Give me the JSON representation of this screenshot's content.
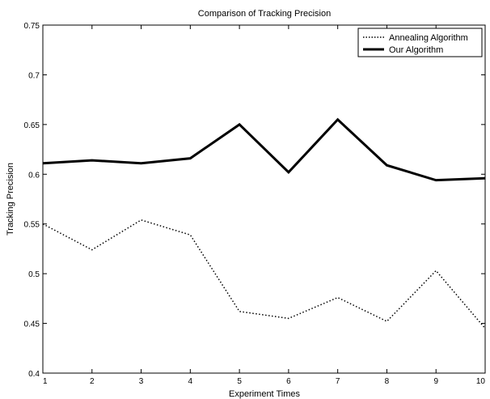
{
  "chart_data": {
    "type": "line",
    "title": "Comparison of Tracking Precision",
    "xlabel": "Experiment Times",
    "ylabel": "Tracking Precision",
    "xlim": [
      1,
      10
    ],
    "ylim": [
      0.4,
      0.75
    ],
    "xticks": [
      1,
      2,
      3,
      4,
      5,
      6,
      7,
      8,
      9,
      10
    ],
    "yticks": [
      0.4,
      0.45,
      0.5,
      0.55,
      0.6,
      0.65,
      0.7,
      0.75
    ],
    "ytick_labels": [
      "0.4",
      "0.45",
      "0.5",
      "0.55",
      "0.6",
      "0.65",
      "0.7",
      "0.75"
    ],
    "x": [
      1,
      2,
      3,
      4,
      5,
      6,
      7,
      8,
      9,
      10
    ],
    "grid": false,
    "legend_position": "top-right",
    "series": [
      {
        "name": "Annealing Algorithm",
        "style": "dotted",
        "color": "#000000",
        "values": [
          0.55,
          0.524,
          0.554,
          0.539,
          0.462,
          0.455,
          0.476,
          0.452,
          0.503,
          0.445
        ]
      },
      {
        "name": "Our Algorithm",
        "style": "solid",
        "color": "#000000",
        "values": [
          0.611,
          0.614,
          0.611,
          0.616,
          0.65,
          0.602,
          0.655,
          0.609,
          0.594,
          0.596
        ]
      }
    ]
  }
}
